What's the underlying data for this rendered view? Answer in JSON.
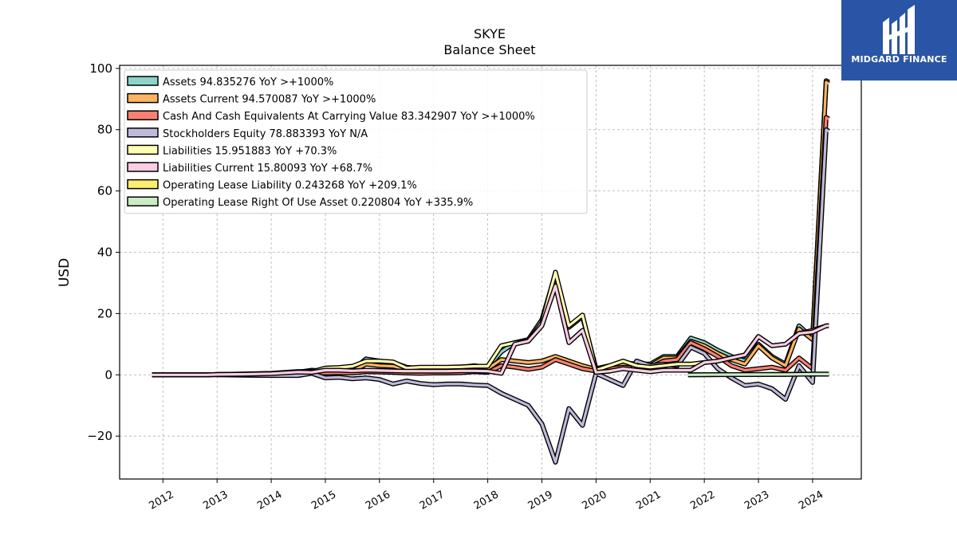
{
  "logo": {
    "text": "MIDGARD FINANCE",
    "background": "#2a55a6"
  },
  "chart_data": {
    "type": "area",
    "title": "SKYE",
    "subtitle": "Balance  Sheet",
    "ylabel": "USD",
    "xlabel": "",
    "ylim": [
      -34,
      101
    ],
    "xlim": [
      2011.2,
      2024.9
    ],
    "yticks": [
      -20,
      0,
      20,
      40,
      60,
      80,
      100
    ],
    "ytick_labels": [
      "−20",
      "0",
      "20",
      "40",
      "60",
      "80",
      "100"
    ],
    "xticks": [
      2012,
      2013,
      2014,
      2015,
      2016,
      2017,
      2018,
      2019,
      2020,
      2021,
      2022,
      2023,
      2024
    ],
    "xtick_labels": [
      "2012",
      "2013",
      "2014",
      "2015",
      "2016",
      "2017",
      "2018",
      "2019",
      "2020",
      "2021",
      "2022",
      "2023",
      "2024"
    ],
    "grid": true,
    "legend_position": "top-left",
    "series": [
      {
        "name": "Assets  94.835276 YoY >+1000%",
        "color": "#8dd3c7",
        "points": [
          [
            2011.8,
            0
          ],
          [
            2012.8,
            0
          ],
          [
            2013.0,
            0.1
          ],
          [
            2013.5,
            0.2
          ],
          [
            2014.0,
            0.3
          ],
          [
            2014.5,
            0.9
          ],
          [
            2014.75,
            1.5
          ],
          [
            2015.0,
            1.2
          ],
          [
            2015.25,
            1.6
          ],
          [
            2015.5,
            1.5
          ],
          [
            2015.75,
            5.2
          ],
          [
            2016.0,
            4.5
          ],
          [
            2016.25,
            4.0
          ],
          [
            2016.5,
            2.5
          ],
          [
            2016.75,
            2.0
          ],
          [
            2017.0,
            2.3
          ],
          [
            2017.25,
            2.3
          ],
          [
            2017.5,
            2.5
          ],
          [
            2017.75,
            3.0
          ],
          [
            2018.0,
            2.5
          ],
          [
            2018.25,
            7.5
          ],
          [
            2018.5,
            10.5
          ],
          [
            2018.75,
            11.5
          ],
          [
            2019.0,
            18.0
          ],
          [
            2019.25,
            33.0
          ],
          [
            2019.5,
            15.5
          ],
          [
            2019.75,
            19.0
          ],
          [
            2020.0,
            2.0
          ],
          [
            2020.25,
            3.0
          ],
          [
            2020.5,
            4.0
          ],
          [
            2020.75,
            3.5
          ],
          [
            2021.0,
            3.5
          ],
          [
            2021.25,
            6.0
          ],
          [
            2021.5,
            6.0
          ],
          [
            2021.75,
            12.0
          ],
          [
            2022.0,
            10.5
          ],
          [
            2022.25,
            8.0
          ],
          [
            2022.5,
            6.0
          ],
          [
            2022.75,
            4.5
          ],
          [
            2023.0,
            10.0
          ],
          [
            2023.25,
            6.0
          ],
          [
            2023.5,
            3.5
          ],
          [
            2023.75,
            16.0
          ],
          [
            2024.0,
            12.0
          ],
          [
            2024.25,
            96.0
          ],
          [
            2024.3,
            95.5
          ]
        ]
      },
      {
        "name": "Assets Current  94.570087 YoY >+1000%",
        "color": "#fdb462",
        "points": [
          [
            2011.8,
            0
          ],
          [
            2012.8,
            0
          ],
          [
            2013.0,
            0.1
          ],
          [
            2013.5,
            0.2
          ],
          [
            2014.0,
            0.3
          ],
          [
            2014.5,
            0.8
          ],
          [
            2014.75,
            1.2
          ],
          [
            2015.0,
            1.0
          ],
          [
            2015.25,
            1.3
          ],
          [
            2015.5,
            1.2
          ],
          [
            2015.75,
            3.5
          ],
          [
            2016.0,
            3.0
          ],
          [
            2016.25,
            2.8
          ],
          [
            2016.5,
            1.8
          ],
          [
            2016.75,
            1.5
          ],
          [
            2017.0,
            1.7
          ],
          [
            2017.25,
            1.7
          ],
          [
            2017.5,
            1.9
          ],
          [
            2017.75,
            2.2
          ],
          [
            2018.0,
            2.0
          ],
          [
            2018.25,
            5.0
          ],
          [
            2018.5,
            4.5
          ],
          [
            2018.75,
            4.0
          ],
          [
            2019.0,
            4.5
          ],
          [
            2019.25,
            6.0
          ],
          [
            2019.5,
            4.5
          ],
          [
            2019.75,
            3.0
          ],
          [
            2020.0,
            1.8
          ],
          [
            2020.25,
            2.5
          ],
          [
            2020.5,
            3.5
          ],
          [
            2020.75,
            3.0
          ],
          [
            2021.0,
            3.0
          ],
          [
            2021.25,
            5.5
          ],
          [
            2021.5,
            5.5
          ],
          [
            2021.75,
            11.0
          ],
          [
            2022.0,
            9.5
          ],
          [
            2022.25,
            7.0
          ],
          [
            2022.5,
            5.0
          ],
          [
            2022.75,
            3.5
          ],
          [
            2023.0,
            9.5
          ],
          [
            2023.25,
            5.5
          ],
          [
            2023.5,
            3.0
          ],
          [
            2023.75,
            15.0
          ],
          [
            2024.0,
            11.5
          ],
          [
            2024.25,
            95.5
          ],
          [
            2024.3,
            95.0
          ]
        ]
      },
      {
        "name": "Cash And Cash Equivalents At Carrying Value  83.342907 YoY >+1000%",
        "color": "#fb8072",
        "points": [
          [
            2011.8,
            0
          ],
          [
            2012.8,
            0
          ],
          [
            2013.0,
            0.1
          ],
          [
            2013.5,
            0.1
          ],
          [
            2014.0,
            0.2
          ],
          [
            2014.5,
            0.5
          ],
          [
            2014.75,
            0.7
          ],
          [
            2015.0,
            0.6
          ],
          [
            2015.25,
            0.7
          ],
          [
            2015.5,
            0.6
          ],
          [
            2015.75,
            1.0
          ],
          [
            2016.0,
            0.9
          ],
          [
            2016.25,
            0.8
          ],
          [
            2016.5,
            0.6
          ],
          [
            2016.75,
            0.5
          ],
          [
            2017.0,
            0.6
          ],
          [
            2017.25,
            0.6
          ],
          [
            2017.5,
            0.7
          ],
          [
            2017.75,
            1.0
          ],
          [
            2018.0,
            0.8
          ],
          [
            2018.25,
            3.0
          ],
          [
            2018.5,
            2.5
          ],
          [
            2018.75,
            1.8
          ],
          [
            2019.0,
            2.5
          ],
          [
            2019.25,
            5.0
          ],
          [
            2019.5,
            3.5
          ],
          [
            2019.75,
            2.0
          ],
          [
            2020.0,
            1.2
          ],
          [
            2020.25,
            2.0
          ],
          [
            2020.5,
            2.5
          ],
          [
            2020.75,
            2.2
          ],
          [
            2021.0,
            2.5
          ],
          [
            2021.25,
            4.5
          ],
          [
            2021.5,
            5.0
          ],
          [
            2021.75,
            10.5
          ],
          [
            2022.0,
            8.5
          ],
          [
            2022.25,
            6.0
          ],
          [
            2022.5,
            3.0
          ],
          [
            2022.75,
            1.5
          ],
          [
            2023.0,
            2.0
          ],
          [
            2023.25,
            2.5
          ],
          [
            2023.5,
            1.5
          ],
          [
            2023.75,
            5.5
          ],
          [
            2024.0,
            2.0
          ],
          [
            2024.25,
            84.0
          ],
          [
            2024.3,
            83.5
          ]
        ]
      },
      {
        "name": "Stockholders Equity  78.883393 YoY N/A",
        "color": "#bebada",
        "points": [
          [
            2011.8,
            0
          ],
          [
            2012.8,
            0
          ],
          [
            2013.0,
            0
          ],
          [
            2013.5,
            -0.1
          ],
          [
            2014.0,
            -0.2
          ],
          [
            2014.5,
            -0.2
          ],
          [
            2014.75,
            0.5
          ],
          [
            2015.0,
            -1.0
          ],
          [
            2015.25,
            -0.8
          ],
          [
            2015.5,
            -1.3
          ],
          [
            2015.75,
            -1.0
          ],
          [
            2016.0,
            -1.5
          ],
          [
            2016.25,
            -3.0
          ],
          [
            2016.5,
            -2.0
          ],
          [
            2016.75,
            -2.8
          ],
          [
            2017.0,
            -3.2
          ],
          [
            2017.25,
            -3.0
          ],
          [
            2017.5,
            -3.0
          ],
          [
            2017.75,
            -3.3
          ],
          [
            2018.0,
            -3.5
          ],
          [
            2018.25,
            -6.0
          ],
          [
            2018.5,
            -8.0
          ],
          [
            2018.75,
            -10.0
          ],
          [
            2019.0,
            -16.0
          ],
          [
            2019.25,
            -28.5
          ],
          [
            2019.5,
            -11.0
          ],
          [
            2019.75,
            -16.5
          ],
          [
            2020.0,
            0.5
          ],
          [
            2020.25,
            -1.5
          ],
          [
            2020.5,
            -3.5
          ],
          [
            2020.75,
            4.5
          ],
          [
            2021.0,
            3.0
          ],
          [
            2021.25,
            3.5
          ],
          [
            2021.5,
            3.0
          ],
          [
            2021.75,
            9.0
          ],
          [
            2022.0,
            7.0
          ],
          [
            2022.25,
            2.0
          ],
          [
            2022.5,
            -1.0
          ],
          [
            2022.75,
            -3.5
          ],
          [
            2023.0,
            -3.0
          ],
          [
            2023.25,
            -4.5
          ],
          [
            2023.5,
            -8.0
          ],
          [
            2023.75,
            3.0
          ],
          [
            2024.0,
            -2.5
          ],
          [
            2024.25,
            80.0
          ],
          [
            2024.3,
            79.5
          ]
        ]
      },
      {
        "name": "Liabilities  15.951883 YoY +70.3%",
        "color": "#ffffb3",
        "points": [
          [
            2011.8,
            0
          ],
          [
            2012.8,
            0
          ],
          [
            2013.0,
            0.1
          ],
          [
            2013.5,
            0.3
          ],
          [
            2014.0,
            0.5
          ],
          [
            2014.5,
            1.1
          ],
          [
            2014.75,
            1.0
          ],
          [
            2015.0,
            2.2
          ],
          [
            2015.25,
            2.4
          ],
          [
            2015.5,
            2.8
          ],
          [
            2015.75,
            4.5
          ],
          [
            2016.0,
            4.5
          ],
          [
            2016.25,
            4.2
          ],
          [
            2016.5,
            2.2
          ],
          [
            2016.75,
            2.5
          ],
          [
            2017.0,
            2.5
          ],
          [
            2017.25,
            2.5
          ],
          [
            2017.5,
            2.6
          ],
          [
            2017.75,
            2.8
          ],
          [
            2018.0,
            2.8
          ],
          [
            2018.25,
            9.5
          ],
          [
            2018.5,
            10.5
          ],
          [
            2018.75,
            11.0
          ],
          [
            2019.0,
            17.0
          ],
          [
            2019.25,
            33.5
          ],
          [
            2019.5,
            16.0
          ],
          [
            2019.75,
            19.5
          ],
          [
            2020.0,
            1.5
          ],
          [
            2020.25,
            3.0
          ],
          [
            2020.5,
            4.5
          ],
          [
            2020.75,
            3.0
          ],
          [
            2021.0,
            2.5
          ],
          [
            2021.25,
            3.0
          ],
          [
            2021.5,
            3.5
          ],
          [
            2021.75,
            3.5
          ],
          [
            2022.0,
            4.0
          ],
          [
            2022.25,
            4.5
          ],
          [
            2022.5,
            5.5
          ],
          [
            2022.75,
            6.5
          ],
          [
            2023.0,
            12.5
          ],
          [
            2023.25,
            9.5
          ],
          [
            2023.5,
            10.0
          ],
          [
            2023.75,
            13.5
          ],
          [
            2024.0,
            14.5
          ],
          [
            2024.25,
            16.0
          ],
          [
            2024.3,
            16.0
          ]
        ]
      },
      {
        "name": "Liabilities Current  15.80093 YoY +68.7%",
        "color": "#fccde5",
        "points": [
          [
            2011.8,
            0
          ],
          [
            2012.8,
            0
          ],
          [
            2013.0,
            0.1
          ],
          [
            2013.5,
            0.2
          ],
          [
            2014.0,
            0.4
          ],
          [
            2014.5,
            0.9
          ],
          [
            2014.75,
            0.8
          ],
          [
            2015.0,
            1.5
          ],
          [
            2015.25,
            1.5
          ],
          [
            2015.5,
            1.3
          ],
          [
            2015.75,
            1.5
          ],
          [
            2016.0,
            1.4
          ],
          [
            2016.25,
            1.3
          ],
          [
            2016.5,
            1.2
          ],
          [
            2016.75,
            1.2
          ],
          [
            2017.0,
            1.2
          ],
          [
            2017.25,
            1.2
          ],
          [
            2017.5,
            1.3
          ],
          [
            2017.75,
            1.3
          ],
          [
            2018.0,
            1.2
          ],
          [
            2018.25,
            0.5
          ],
          [
            2018.5,
            10.0
          ],
          [
            2018.75,
            11.0
          ],
          [
            2019.0,
            16.0
          ],
          [
            2019.25,
            29.0
          ],
          [
            2019.5,
            10.5
          ],
          [
            2019.75,
            14.5
          ],
          [
            2020.0,
            0.8
          ],
          [
            2020.25,
            1.2
          ],
          [
            2020.5,
            2.0
          ],
          [
            2020.75,
            1.5
          ],
          [
            2021.0,
            1.0
          ],
          [
            2021.25,
            1.5
          ],
          [
            2021.5,
            1.5
          ],
          [
            2021.75,
            1.5
          ],
          [
            2022.0,
            4.0
          ],
          [
            2022.25,
            4.5
          ],
          [
            2022.5,
            5.5
          ],
          [
            2022.75,
            6.5
          ],
          [
            2023.0,
            12.5
          ],
          [
            2023.25,
            9.5
          ],
          [
            2023.5,
            10.0
          ],
          [
            2023.75,
            13.5
          ],
          [
            2024.0,
            14.0
          ],
          [
            2024.25,
            16.0
          ],
          [
            2024.3,
            16.0
          ]
        ]
      },
      {
        "name": "Operating Lease Liability  0.243268 YoY +209.1%",
        "color": "#ffed6f",
        "points": [
          [
            2021.7,
            0
          ],
          [
            2022.0,
            0.05
          ],
          [
            2022.5,
            0.08
          ],
          [
            2023.0,
            0.1
          ],
          [
            2023.5,
            0.15
          ],
          [
            2024.0,
            0.24
          ],
          [
            2024.3,
            0.24
          ]
        ]
      },
      {
        "name": "Operating Lease Right Of Use Asset  0.220804 YoY +335.9%",
        "color": "#ccebc5",
        "points": [
          [
            2021.7,
            0
          ],
          [
            2022.0,
            0.05
          ],
          [
            2022.5,
            0.07
          ],
          [
            2023.0,
            0.1
          ],
          [
            2023.5,
            0.14
          ],
          [
            2024.0,
            0.22
          ],
          [
            2024.3,
            0.22
          ]
        ]
      }
    ]
  }
}
